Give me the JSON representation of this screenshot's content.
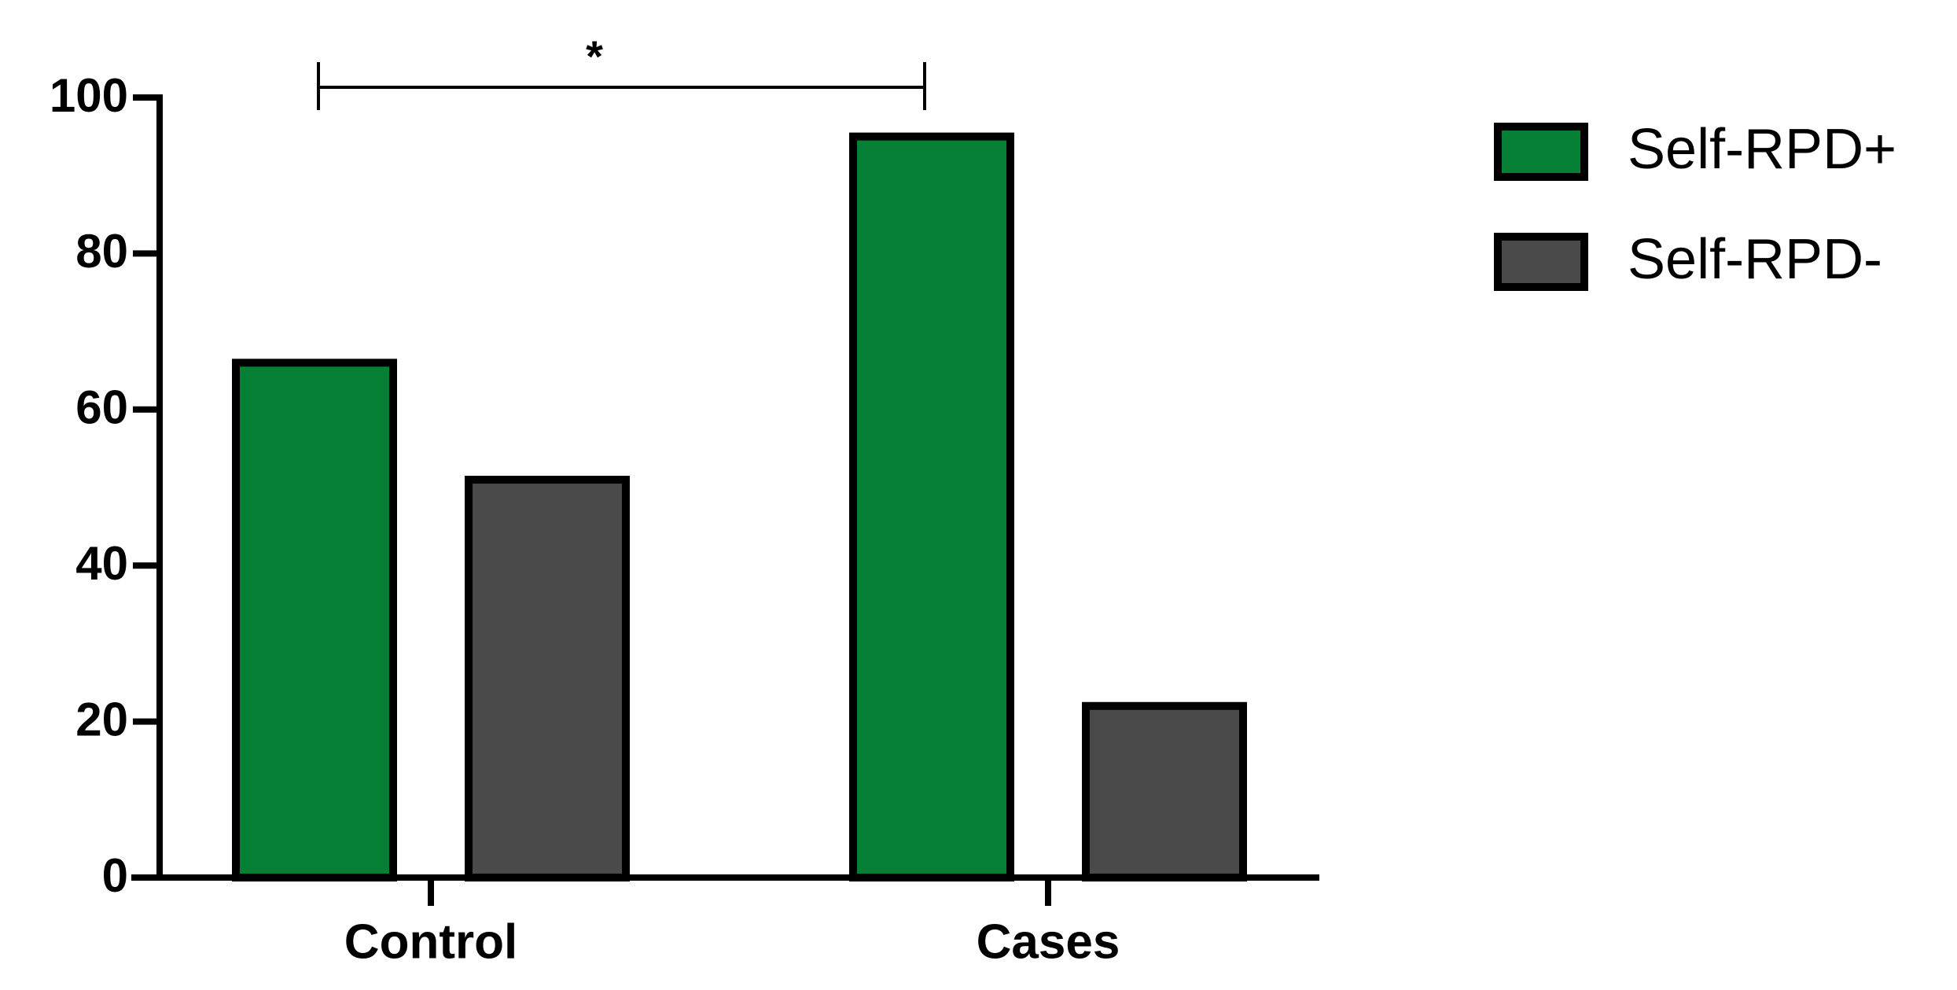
{
  "chart_data": {
    "type": "bar",
    "categories": [
      "Control",
      "Cases"
    ],
    "series": [
      {
        "name": "Self-RPD+",
        "color": "#047f33",
        "values": [
          66,
          95
        ]
      },
      {
        "name": "Self-RPD-",
        "color": "#4a4a4a",
        "values": [
          51,
          22
        ]
      }
    ],
    "ylim": [
      0,
      100
    ],
    "yticks": [
      0,
      20,
      40,
      60,
      80,
      100
    ],
    "annotation": "*",
    "legend": "right"
  }
}
